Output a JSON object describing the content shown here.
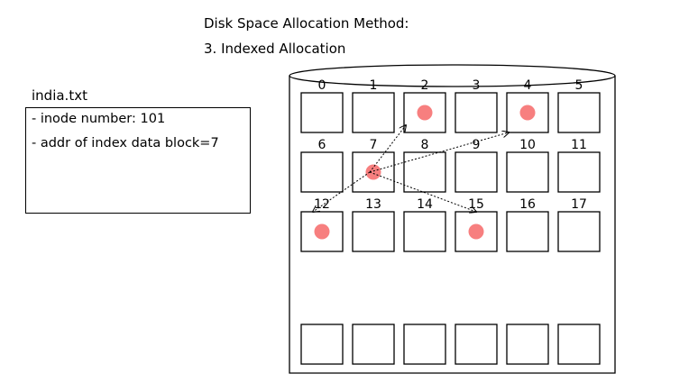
{
  "header": {
    "title": "Disk Space Allocation Method:",
    "subtitle": "3. Indexed Allocation"
  },
  "file": {
    "name": "india.txt",
    "lines": [
      "- inode number: 101",
      "- addr of index data block=7"
    ]
  },
  "disk": {
    "blocks": [
      {
        "label": "0",
        "used": false
      },
      {
        "label": "1",
        "used": false
      },
      {
        "label": "2",
        "used": true
      },
      {
        "label": "3",
        "used": false
      },
      {
        "label": "4",
        "used": true
      },
      {
        "label": "5",
        "used": false
      },
      {
        "label": "6",
        "used": false
      },
      {
        "label": "7",
        "used": true
      },
      {
        "label": "8",
        "used": false
      },
      {
        "label": "9",
        "used": false
      },
      {
        "label": "10",
        "used": false
      },
      {
        "label": "11",
        "used": false
      },
      {
        "label": "12",
        "used": true
      },
      {
        "label": "13",
        "used": false
      },
      {
        "label": "14",
        "used": false
      },
      {
        "label": "15",
        "used": true
      },
      {
        "label": "16",
        "used": false
      },
      {
        "label": "17",
        "used": false
      }
    ],
    "index_block": 7,
    "pointers_to": [
      2,
      4,
      12,
      15
    ],
    "extra_row_count": 6,
    "colors": {
      "used_dot": "#f77f7f",
      "stroke": "#000000"
    }
  }
}
